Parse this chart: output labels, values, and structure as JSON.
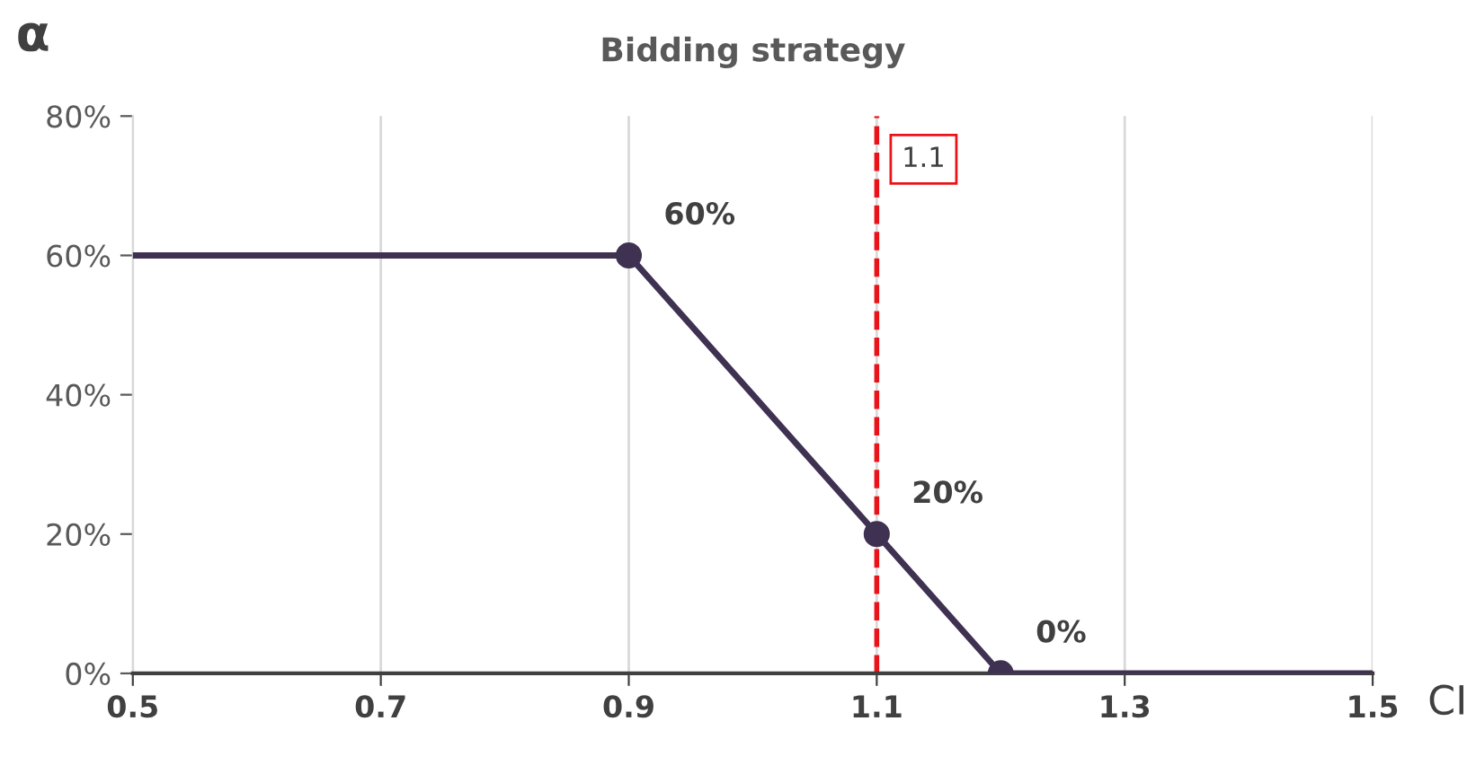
{
  "chart_data": {
    "type": "line",
    "title": "Bidding strategy",
    "xlabel": "CI",
    "ylabel": "α",
    "xlim": [
      0.5,
      1.5
    ],
    "xticks": [
      0.5,
      0.7,
      0.9,
      1.1,
      1.3,
      1.5
    ],
    "ylim": [
      0,
      80
    ],
    "yticks": [
      {
        "value": 0,
        "label": "0%"
      },
      {
        "value": 20,
        "label": "20%"
      },
      {
        "value": 40,
        "label": "40%"
      },
      {
        "value": 60,
        "label": "60%"
      },
      {
        "value": 80,
        "label": "80%"
      }
    ],
    "grid": "x",
    "line_style": "solid",
    "series": [
      {
        "color": "#3f3151",
        "x": [
          0.5,
          0.9,
          1.1,
          1.2,
          1.5
        ],
        "values": [
          60,
          60,
          20,
          0,
          0
        ],
        "marker": "none"
      },
      {
        "type": "scatter",
        "color": "#3f3151",
        "x": [
          0.9,
          1.1,
          1.2
        ],
        "values": [
          60,
          20,
          0
        ],
        "marker": "circle",
        "value_labels": [
          "60%",
          "20%",
          "0%"
        ]
      }
    ],
    "ref_lines": [
      {
        "axis": "x",
        "value": 1.1,
        "label": "1.1",
        "color": "#e8141a",
        "line_style": "dashed"
      }
    ]
  }
}
